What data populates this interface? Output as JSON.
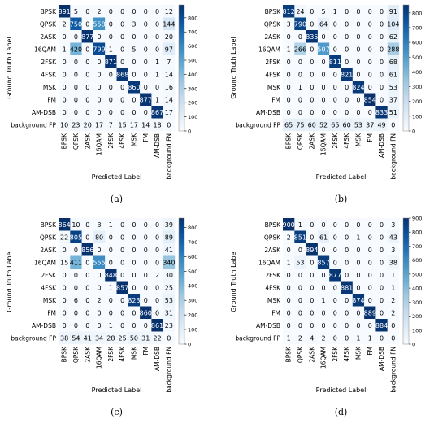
{
  "chart_data": [
    {
      "type": "heatmap",
      "caption": "(a)",
      "xlabel": "Predicted Label",
      "ylabel": "Ground Truth Label",
      "row_labels": [
        "BPSK",
        "QPSK",
        "2ASK",
        "16QAM",
        "2FSK",
        "4FSK",
        "MSK",
        "FM",
        "AM-DSB",
        "background FP"
      ],
      "col_labels": [
        "BPSK",
        "QPSK",
        "2ASK",
        "16QAM",
        "2FSK",
        "4FSK",
        "MSK",
        "FM",
        "AM-DSB",
        "background FN"
      ],
      "matrix": [
        [
          891,
          5,
          0,
          2,
          0,
          0,
          0,
          0,
          0,
          12
        ],
        [
          2,
          750,
          0,
          558,
          0,
          0,
          3,
          0,
          0,
          144
        ],
        [
          0,
          0,
          877,
          0,
          0,
          0,
          0,
          0,
          0,
          20
        ],
        [
          1,
          420,
          0,
          799,
          1,
          0,
          5,
          0,
          0,
          97
        ],
        [
          0,
          0,
          0,
          0,
          871,
          0,
          0,
          0,
          1,
          7
        ],
        [
          0,
          0,
          0,
          0,
          0,
          868,
          0,
          0,
          1,
          14
        ],
        [
          0,
          0,
          0,
          0,
          0,
          0,
          860,
          0,
          0,
          16
        ],
        [
          0,
          0,
          0,
          0,
          0,
          0,
          0,
          877,
          1,
          14
        ],
        [
          0,
          0,
          0,
          0,
          0,
          0,
          0,
          0,
          867,
          17
        ],
        [
          10,
          23,
          20,
          17,
          7,
          15,
          17,
          14,
          18,
          0
        ]
      ],
      "colorbar_ticks": [
        0,
        100,
        200,
        300,
        400,
        500,
        600,
        700,
        800
      ],
      "vmax": 891
    },
    {
      "type": "heatmap",
      "caption": "(b)",
      "xlabel": "Predicted Label",
      "ylabel": "Ground Truth Label",
      "row_labels": [
        "BPSK",
        "QPSK",
        "2ASK",
        "16QAM",
        "2FSK",
        "4FSK",
        "MSK",
        "FM",
        "AM-DSB",
        "background FP"
      ],
      "col_labels": [
        "BPSK",
        "QPSK",
        "2ASK",
        "16QAM",
        "2FSK",
        "4FSK",
        "MSK",
        "FM",
        "AM-DSB",
        "background FN"
      ],
      "matrix": [
        [
          812,
          24,
          0,
          5,
          1,
          0,
          0,
          0,
          0,
          91
        ],
        [
          3,
          790,
          0,
          64,
          0,
          0,
          0,
          0,
          0,
          104
        ],
        [
          0,
          0,
          835,
          0,
          0,
          0,
          0,
          0,
          0,
          62
        ],
        [
          1,
          266,
          0,
          507,
          0,
          0,
          0,
          0,
          0,
          288
        ],
        [
          0,
          0,
          0,
          0,
          811,
          0,
          0,
          0,
          0,
          68
        ],
        [
          0,
          0,
          0,
          0,
          0,
          821,
          0,
          0,
          0,
          61
        ],
        [
          0,
          1,
          0,
          0,
          0,
          0,
          824,
          0,
          0,
          53
        ],
        [
          0,
          0,
          0,
          0,
          0,
          0,
          0,
          854,
          0,
          37
        ],
        [
          0,
          0,
          0,
          0,
          0,
          0,
          0,
          0,
          833,
          51
        ],
        [
          65,
          75,
          60,
          52,
          65,
          60,
          53,
          37,
          49,
          0
        ]
      ],
      "colorbar_ticks": [
        0,
        100,
        200,
        300,
        400,
        500,
        600,
        700,
        800
      ],
      "vmax": 854
    },
    {
      "type": "heatmap",
      "caption": "(c)",
      "xlabel": "Predicted Label",
      "ylabel": "Ground Truth Label",
      "row_labels": [
        "BPSK",
        "QPSK",
        "2ASK",
        "16QAM",
        "2FSK",
        "4FSK",
        "MSK",
        "FM",
        "AM-DSB",
        "background FP"
      ],
      "col_labels": [
        "BPSK",
        "QPSK",
        "2ASK",
        "16QAM",
        "2FSK",
        "4FSK",
        "MSK",
        "FM",
        "AM-DSB",
        "background FN"
      ],
      "matrix": [
        [
          864,
          10,
          0,
          3,
          1,
          0,
          0,
          0,
          0,
          39
        ],
        [
          22,
          805,
          0,
          80,
          0,
          0,
          0,
          0,
          0,
          89
        ],
        [
          0,
          0,
          856,
          0,
          0,
          0,
          0,
          0,
          0,
          41
        ],
        [
          15,
          411,
          0,
          555,
          0,
          0,
          0,
          0,
          0,
          340
        ],
        [
          0,
          0,
          0,
          0,
          848,
          0,
          0,
          0,
          2,
          30
        ],
        [
          0,
          0,
          0,
          0,
          1,
          857,
          0,
          0,
          0,
          25
        ],
        [
          0,
          6,
          0,
          2,
          0,
          0,
          823,
          0,
          0,
          53
        ],
        [
          0,
          0,
          0,
          0,
          0,
          0,
          0,
          860,
          0,
          31
        ],
        [
          0,
          0,
          0,
          0,
          1,
          0,
          0,
          0,
          861,
          23
        ],
        [
          38,
          54,
          41,
          34,
          28,
          25,
          50,
          31,
          22,
          0
        ]
      ],
      "colorbar_ticks": [
        0,
        100,
        200,
        300,
        400,
        500,
        600,
        700,
        800
      ],
      "vmax": 864
    },
    {
      "type": "heatmap",
      "caption": "(d)",
      "xlabel": "Predicted Label",
      "ylabel": "Ground Truth Label",
      "row_labels": [
        "BPSK",
        "QPSK",
        "2ASK",
        "16QAM",
        "2FSK",
        "4FSK",
        "MSK",
        "FM",
        "AM-DSB",
        "background FP"
      ],
      "col_labels": [
        "BPSK",
        "QPSK",
        "2ASK",
        "16QAM",
        "2FSK",
        "4FSK",
        "MSK",
        "FM",
        "AM-DSB",
        "background FN"
      ],
      "matrix": [
        [
          900,
          1,
          0,
          0,
          0,
          0,
          0,
          0,
          0,
          3
        ],
        [
          2,
          851,
          0,
          61,
          0,
          0,
          1,
          0,
          0,
          43
        ],
        [
          0,
          0,
          894,
          0,
          0,
          0,
          0,
          0,
          0,
          3
        ],
        [
          1,
          53,
          0,
          857,
          0,
          0,
          0,
          0,
          0,
          38
        ],
        [
          0,
          0,
          0,
          0,
          877,
          0,
          0,
          0,
          0,
          1
        ],
        [
          0,
          0,
          0,
          0,
          0,
          881,
          0,
          0,
          0,
          1
        ],
        [
          0,
          0,
          0,
          1,
          0,
          0,
          874,
          0,
          0,
          2
        ],
        [
          0,
          0,
          0,
          0,
          0,
          0,
          0,
          889,
          0,
          2
        ],
        [
          0,
          0,
          0,
          0,
          0,
          0,
          0,
          0,
          884,
          0
        ],
        [
          1,
          2,
          4,
          2,
          0,
          0,
          1,
          1,
          0,
          0
        ]
      ],
      "colorbar_ticks": [
        0,
        100,
        200,
        300,
        400,
        500,
        600,
        700,
        800,
        900
      ],
      "vmax": 900
    }
  ]
}
